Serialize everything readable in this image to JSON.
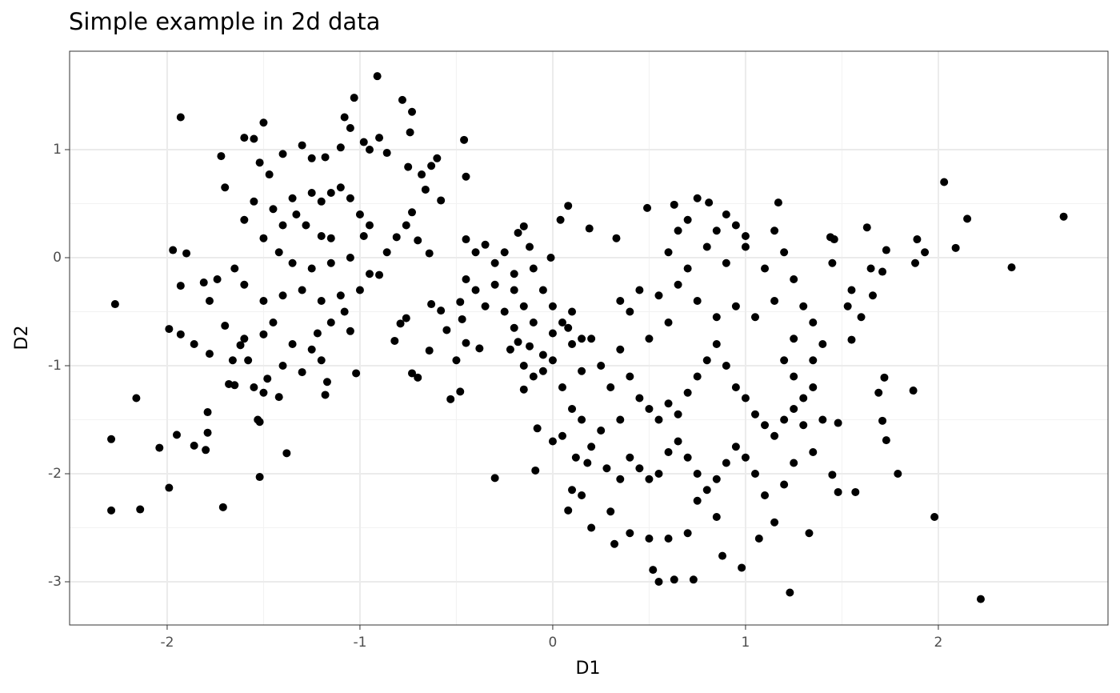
{
  "chart_data": {
    "type": "scatter",
    "title": "Simple example in 2d data",
    "xlabel": "D1",
    "ylabel": "D2",
    "color": "#000000",
    "grid": true,
    "xlim": [
      -2.506,
      2.88
    ],
    "ylim": [
      -3.4,
      1.911
    ],
    "xticks": [
      -2,
      -1,
      0,
      1,
      2
    ],
    "yticks": [
      -3,
      -2,
      -1,
      0,
      1
    ],
    "x": [
      -2.27,
      -2.29,
      -2.29,
      -2.14,
      -2.16,
      -2.04,
      -1.99,
      -1.99,
      -1.95,
      -1.93,
      -1.97,
      -1.9,
      -1.93,
      -1.93,
      -1.86,
      -1.86,
      -1.8,
      -1.79,
      -1.79,
      -1.78,
      -1.78,
      -1.81,
      -1.74,
      -1.72,
      -1.7,
      -1.71,
      -1.68,
      -1.65,
      -1.52,
      -1.38,
      -1.53,
      -1.52,
      -0.91,
      -0.46,
      -0.53,
      -0.3,
      -1.02,
      -0.73,
      -0.7,
      2.03,
      2.15,
      2.65,
      2.38,
      2.09,
      1.93,
      1.88,
      1.89,
      1.63,
      1.73,
      1.71,
      1.66,
      1.55,
      1.53,
      1.55,
      1.69,
      1.72,
      1.71,
      1.73,
      1.79,
      1.87,
      1.98,
      2.22,
      1.57,
      1.48,
      1.45,
      1.48,
      1.23,
      0.98,
      0.55,
      0.52,
      0.63,
      0.73,
      0.88,
      0.32,
      0.08,
      -0.09,
      -0.08,
      0.08,
      0.19,
      0.04,
      -0.01,
      0.33,
      0.49,
      0.63,
      0.75,
      0.81,
      1.17,
      1.46,
      1.44,
      -1.5,
      -1.55,
      -1.6,
      -1.52,
      -1.47,
      -1.4,
      -1.3,
      -1.25,
      -1.18,
      -1.1,
      -1.05,
      -1.03,
      -1.08,
      -0.98,
      -0.95,
      -0.9,
      -0.86,
      -0.78,
      -0.73,
      -0.74,
      -0.75,
      -0.68,
      -0.6,
      -0.63,
      -0.66,
      -0.58,
      -0.45,
      -0.73,
      -0.76,
      -0.81,
      -0.86,
      -0.9,
      -0.7,
      -0.64,
      -0.63,
      -0.58,
      -0.48,
      -0.47,
      -0.76,
      -0.79,
      -0.82,
      -0.64,
      -0.55,
      -0.5,
      -0.45,
      -0.48,
      -0.38,
      -1.35,
      -1.33,
      -1.25,
      -1.2,
      -1.15,
      -1.1,
      -1.05,
      -1.0,
      -0.95,
      -0.98,
      -1.15,
      -1.2,
      -1.28,
      -1.4,
      -1.45,
      -1.55,
      -1.6,
      -1.5,
      -1.42,
      -1.35,
      -1.25,
      -1.15,
      -1.05,
      -0.95,
      -1.0,
      -1.1,
      -1.2,
      -1.3,
      -1.4,
      -1.5,
      -1.6,
      -1.65,
      -1.7,
      -1.62,
      -1.58,
      -1.5,
      -1.45,
      -1.35,
      -1.25,
      -1.15,
      -1.08,
      -1.05,
      -1.2,
      -1.3,
      -1.4,
      -1.48,
      -1.55,
      -1.5,
      -1.42,
      -1.18,
      -1.17,
      -1.22,
      -1.6,
      -1.66,
      -0.45,
      -0.4,
      -0.35,
      -0.3,
      -0.25,
      -0.2,
      -0.18,
      -0.15,
      -0.12,
      -0.1,
      -0.2,
      -0.3,
      -0.4,
      -0.45,
      -0.35,
      -0.25,
      -0.15,
      -0.05,
      0.0,
      0.05,
      0.1,
      -0.1,
      -0.2,
      -0.18,
      -0.22,
      -0.12,
      -0.05,
      0.0,
      0.08,
      0.1,
      -0.15,
      -0.1,
      -0.05,
      0.0,
      -0.15,
      0.15,
      0.2,
      0.3,
      0.4,
      0.45,
      0.5,
      0.55,
      0.6,
      0.65,
      0.7,
      0.75,
      0.8,
      0.85,
      0.9,
      0.95,
      1.0,
      1.05,
      1.1,
      1.15,
      1.2,
      1.25,
      1.3,
      0.35,
      0.25,
      0.2,
      0.15,
      0.1,
      0.05,
      0.0,
      0.12,
      0.18,
      0.28,
      0.35,
      0.4,
      0.45,
      0.5,
      0.55,
      0.6,
      0.65,
      0.7,
      0.75,
      0.8,
      0.85,
      0.9,
      0.95,
      1.0,
      1.05,
      1.1,
      1.15,
      1.2,
      0.85,
      0.75,
      0.6,
      0.5,
      0.4,
      0.3,
      0.2,
      0.15,
      0.1,
      0.7,
      1.07,
      1.33,
      0.4,
      0.45,
      0.55,
      0.65,
      0.7,
      0.6,
      0.8,
      0.9,
      1.0,
      1.1,
      1.2,
      1.25,
      0.9,
      0.95,
      1.0,
      0.65,
      0.7,
      0.85,
      1.15,
      1.3,
      1.35,
      1.4,
      1.25,
      1.15,
      1.05,
      0.95,
      0.85,
      0.75,
      0.6,
      0.5,
      0.35,
      0.25,
      0.35,
      0.15,
      0.05,
      1.2,
      1.25,
      1.35,
      1.3,
      1.35,
      1.25,
      1.4,
      1.6,
      1.65,
      1.45,
      1.35
    ],
    "values": [
      -0.43,
      -1.68,
      -2.34,
      -2.33,
      -1.3,
      -1.76,
      -2.13,
      -0.66,
      -1.64,
      1.3,
      0.07,
      0.04,
      -0.26,
      -0.71,
      -0.8,
      -1.74,
      -1.78,
      -1.62,
      -1.43,
      -0.89,
      -0.4,
      -0.23,
      -0.2,
      0.94,
      0.65,
      -2.31,
      -1.17,
      -1.18,
      -2.03,
      -1.81,
      -1.5,
      -1.52,
      1.68,
      1.09,
      -1.31,
      -2.04,
      -1.07,
      -1.07,
      -1.11,
      0.7,
      0.36,
      0.38,
      -0.09,
      0.09,
      0.05,
      -0.05,
      0.17,
      0.28,
      0.07,
      -0.13,
      -0.35,
      -0.3,
      -0.45,
      -0.76,
      -1.25,
      -1.11,
      -1.51,
      -1.69,
      -2.0,
      -1.23,
      -2.4,
      -3.16,
      -2.17,
      -2.17,
      -2.01,
      -1.53,
      -3.1,
      -2.87,
      -3.0,
      -2.89,
      -2.98,
      -2.98,
      -2.76,
      -2.65,
      -2.34,
      -1.97,
      -1.58,
      0.48,
      0.27,
      0.35,
      0.0,
      0.18,
      0.46,
      0.49,
      0.55,
      0.51,
      0.51,
      0.17,
      0.19,
      1.25,
      1.1,
      1.11,
      0.88,
      0.77,
      0.96,
      1.04,
      0.92,
      0.93,
      1.02,
      1.2,
      1.48,
      1.3,
      1.07,
      1.0,
      1.11,
      0.97,
      1.46,
      1.35,
      1.16,
      0.84,
      0.77,
      0.92,
      0.85,
      0.63,
      0.53,
      0.75,
      0.42,
      0.3,
      0.19,
      0.05,
      -0.16,
      0.16,
      0.04,
      -0.43,
      -0.49,
      -0.41,
      -0.57,
      -0.56,
      -0.61,
      -0.77,
      -0.86,
      -0.67,
      -0.95,
      -0.79,
      -1.24,
      -0.84,
      0.55,
      0.4,
      0.6,
      0.52,
      0.6,
      0.65,
      0.55,
      0.4,
      0.3,
      0.2,
      0.18,
      0.2,
      0.3,
      0.3,
      0.45,
      0.52,
      0.35,
      0.18,
      0.05,
      -0.05,
      -0.1,
      -0.05,
      0.0,
      -0.15,
      -0.3,
      -0.35,
      -0.4,
      -0.3,
      -0.35,
      -0.4,
      -0.25,
      -0.1,
      -0.63,
      -0.81,
      -0.95,
      -0.71,
      -0.6,
      -0.8,
      -0.85,
      -0.6,
      -0.5,
      -0.68,
      -0.95,
      -1.06,
      -1.0,
      -1.12,
      -1.2,
      -1.25,
      -1.29,
      -1.27,
      -1.15,
      -0.7,
      -0.75,
      -0.95,
      0.17,
      0.05,
      0.12,
      -0.05,
      0.05,
      -0.15,
      0.23,
      0.29,
      0.1,
      -0.1,
      -0.3,
      -0.25,
      -0.3,
      -0.2,
      -0.45,
      -0.5,
      -0.45,
      -0.3,
      -0.45,
      -0.6,
      -0.5,
      -0.6,
      -0.65,
      -0.78,
      -0.85,
      -0.82,
      -0.9,
      -0.7,
      -0.65,
      -0.8,
      -1.0,
      -1.1,
      -1.05,
      -0.95,
      -1.22,
      -0.75,
      -0.75,
      -1.2,
      -1.1,
      -1.3,
      -1.4,
      -1.5,
      -1.35,
      -1.45,
      -1.25,
      -1.1,
      -0.95,
      -0.8,
      -1.0,
      -1.2,
      -1.3,
      -1.45,
      -1.55,
      -1.65,
      -1.5,
      -1.4,
      -1.3,
      -1.5,
      -1.6,
      -1.75,
      -1.5,
      -1.4,
      -1.65,
      -1.7,
      -1.85,
      -1.9,
      -1.95,
      -2.05,
      -1.85,
      -1.95,
      -2.05,
      -2.0,
      -1.8,
      -1.7,
      -1.85,
      -2.0,
      -2.15,
      -2.05,
      -1.9,
      -1.75,
      -1.85,
      -2.0,
      -2.2,
      -2.45,
      -2.1,
      -2.4,
      -2.25,
      -2.6,
      -2.6,
      -2.55,
      -2.35,
      -2.5,
      -2.2,
      -2.15,
      -2.55,
      -2.6,
      -2.55,
      -0.5,
      -0.3,
      -0.35,
      -0.25,
      -0.1,
      0.05,
      0.1,
      -0.05,
      0.1,
      -0.1,
      0.05,
      -0.2,
      0.4,
      0.3,
      0.2,
      0.25,
      0.35,
      0.25,
      0.25,
      -0.45,
      -0.6,
      -0.8,
      -0.75,
      -0.4,
      -0.55,
      -0.45,
      -0.55,
      -0.4,
      -0.6,
      -0.75,
      -0.85,
      -1.0,
      -0.4,
      -1.05,
      -1.2,
      -0.95,
      -1.1,
      -1.2,
      -1.55,
      -1.8,
      -1.9,
      -1.5,
      -0.55,
      -0.1,
      -0.05,
      -0.95
    ]
  }
}
